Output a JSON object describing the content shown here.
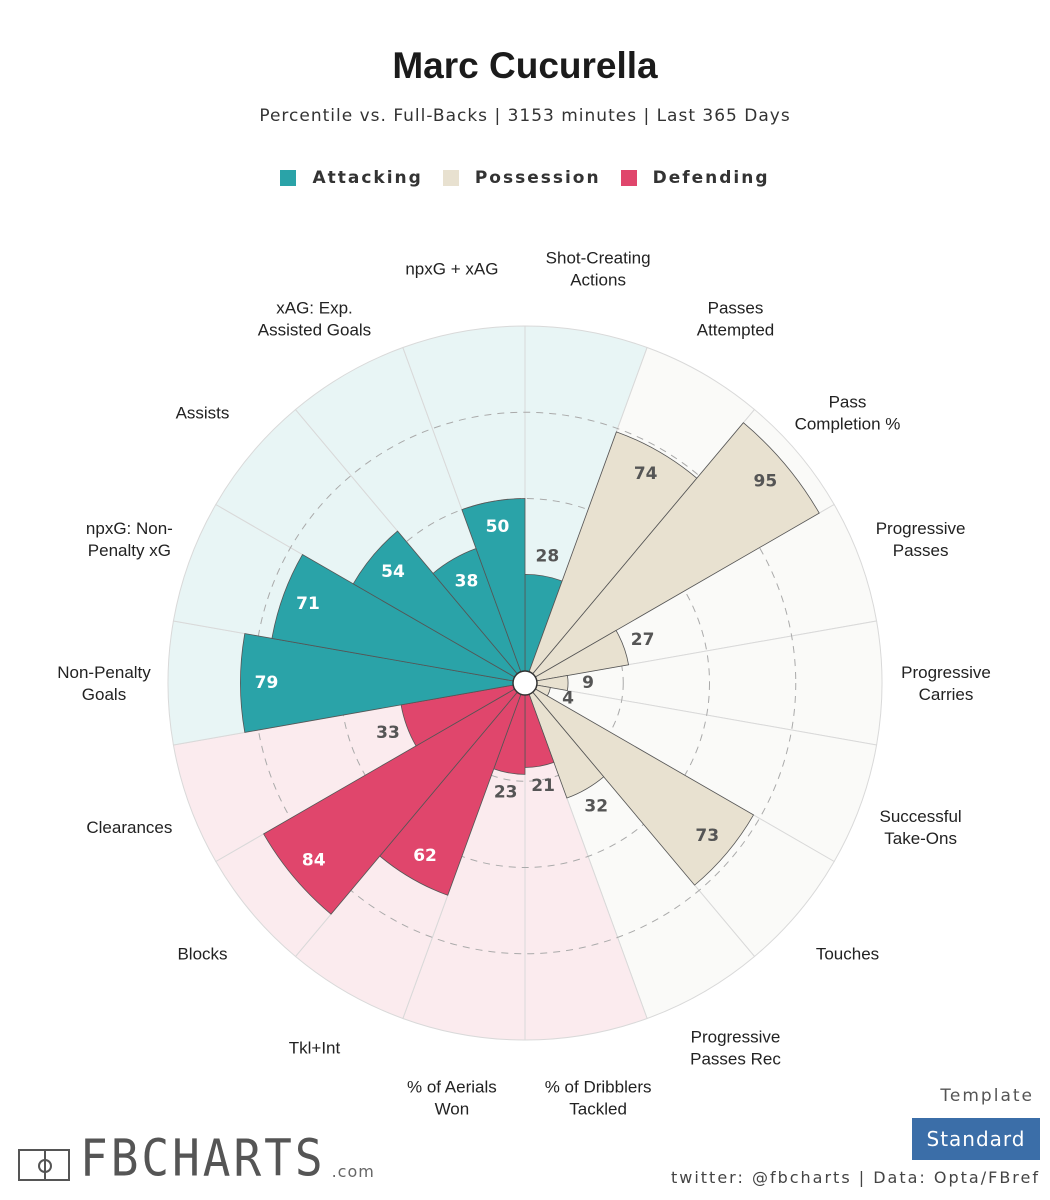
{
  "header": {
    "title": "Marc Cucurella",
    "subtitle": "Percentile vs. Full-Backs | 3153 minutes | Last 365 Days"
  },
  "legend": [
    {
      "label": "Attacking",
      "color": "#2aa3a8"
    },
    {
      "label": "Possession",
      "color": "#e8e1d0"
    },
    {
      "label": "Defending",
      "color": "#e0466c"
    }
  ],
  "chart_data": {
    "type": "polar-bar",
    "title": "Marc Cucurella",
    "subtitle": "Percentile vs. Full-Backs | 3153 minutes | Last 365 Days",
    "rlim": [
      0,
      100
    ],
    "direction": "clockwise from top",
    "gridlines": [
      25,
      50,
      75
    ],
    "groups": {
      "Attacking": {
        "bar": "#2aa3a8",
        "bg": "#e8f5f5",
        "text": "#ffffff"
      },
      "Possession": {
        "bar": "#e8e1d0",
        "bg": "#fafaf8",
        "text": "#555555"
      },
      "Defending": {
        "bar": "#e0466c",
        "bg": "#fbebee",
        "text": "#ffffff"
      }
    },
    "categories": [
      {
        "label": "Shot-Creating\nActions",
        "value": 28,
        "group": "Attacking"
      },
      {
        "label": "Passes\nAttempted",
        "value": 74,
        "group": "Possession"
      },
      {
        "label": "Pass\nCompletion %",
        "value": 95,
        "group": "Possession"
      },
      {
        "label": "Progressive\nPasses",
        "value": 27,
        "group": "Possession"
      },
      {
        "label": "Progressive\nCarries",
        "value": 9,
        "group": "Possession"
      },
      {
        "label": "Successful\nTake-Ons",
        "value": 4,
        "group": "Possession"
      },
      {
        "label": "Touches",
        "value": 73,
        "group": "Possession"
      },
      {
        "label": "Progressive\nPasses Rec",
        "value": 32,
        "group": "Possession"
      },
      {
        "label": "% of Dribblers\nTackled",
        "value": 21,
        "group": "Defending"
      },
      {
        "label": "% of Aerials\nWon",
        "value": 23,
        "group": "Defending"
      },
      {
        "label": "Tkl+Int",
        "value": 62,
        "group": "Defending"
      },
      {
        "label": "Blocks",
        "value": 84,
        "group": "Defending"
      },
      {
        "label": "Clearances",
        "value": 33,
        "group": "Defending"
      },
      {
        "label": "Non-Penalty\nGoals",
        "value": 79,
        "group": "Attacking"
      },
      {
        "label": "npxG: Non-\nPenalty xG",
        "value": 71,
        "group": "Attacking"
      },
      {
        "label": "Assists",
        "value": 54,
        "group": "Attacking"
      },
      {
        "label": "xAG: Exp.\nAssisted Goals",
        "value": 38,
        "group": "Attacking"
      },
      {
        "label": "npxG + xAG",
        "value": 50,
        "group": "Attacking"
      }
    ]
  },
  "footer": {
    "brand": "FBCHARTS",
    "brand_suffix": ".com",
    "template_title": "Template",
    "template_name": "Standard",
    "credits": "twitter: @fbcharts | Data: Opta/FBref"
  }
}
